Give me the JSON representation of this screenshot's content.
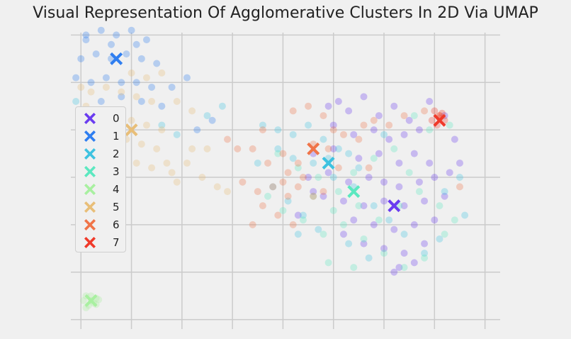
{
  "chart_data": {
    "type": "scatter",
    "title": "Visual Representation Of Agglomerative Clusters In 2D Via UMAP",
    "xlabel": "",
    "ylabel": "",
    "xlim": [
      -1.2,
      7.3
    ],
    "ylim": [
      -3.2,
      3.2
    ],
    "grid": true,
    "tick_labels_visible": false,
    "legend_placement": "center-left",
    "point_alpha": 0.3,
    "series": [
      {
        "name": "0",
        "color": "#6a3cf0",
        "points": [
          [
            3.9,
            1.5
          ],
          [
            4.1,
            1.6
          ],
          [
            4.3,
            1.4
          ],
          [
            4.6,
            1.7
          ],
          [
            4.9,
            1.3
          ],
          [
            5.2,
            1.5
          ],
          [
            5.5,
            1.2
          ],
          [
            4.0,
            1.1
          ],
          [
            4.4,
            0.9
          ],
          [
            4.8,
            1.0
          ],
          [
            5.1,
            0.8
          ],
          [
            5.4,
            0.9
          ],
          [
            5.7,
            1.0
          ],
          [
            3.6,
            0.5
          ],
          [
            4.0,
            0.6
          ],
          [
            4.5,
            0.4
          ],
          [
            4.9,
            0.5
          ],
          [
            5.3,
            0.3
          ],
          [
            5.6,
            0.5
          ],
          [
            5.9,
            0.3
          ],
          [
            3.5,
            0.0
          ],
          [
            3.9,
            0.1
          ],
          [
            4.3,
            -0.1
          ],
          [
            4.7,
            0.0
          ],
          [
            5.0,
            -0.1
          ],
          [
            5.3,
            -0.2
          ],
          [
            5.7,
            -0.1
          ],
          [
            6.0,
            0.0
          ],
          [
            6.3,
            0.1
          ],
          [
            3.8,
            -0.4
          ],
          [
            4.2,
            -0.5
          ],
          [
            4.6,
            -0.6
          ],
          [
            5.0,
            -0.5
          ],
          [
            5.4,
            -0.6
          ],
          [
            5.8,
            -0.5
          ],
          [
            6.2,
            -0.4
          ],
          [
            4.4,
            -0.9
          ],
          [
            4.8,
            -1.0
          ],
          [
            5.2,
            -1.1
          ],
          [
            5.6,
            -1.0
          ],
          [
            6.0,
            -0.9
          ],
          [
            4.6,
            -1.4
          ],
          [
            5.0,
            -1.5
          ],
          [
            5.4,
            -1.6
          ],
          [
            5.8,
            -1.4
          ],
          [
            5.3,
            -1.9
          ],
          [
            5.6,
            -1.8
          ],
          [
            5.2,
            -2.0
          ],
          [
            4.2,
            -1.2
          ],
          [
            3.6,
            -0.3
          ],
          [
            3.3,
            -0.8
          ],
          [
            6.5,
            0.3
          ],
          [
            6.2,
            1.3
          ],
          [
            5.9,
            1.6
          ],
          [
            6.4,
            0.8
          ]
        ]
      },
      {
        "name": "1",
        "color": "#2f7ef0",
        "points": [
          [
            -0.9,
            3.0
          ],
          [
            -0.6,
            3.1
          ],
          [
            -0.3,
            3.0
          ],
          [
            0.0,
            3.1
          ],
          [
            0.3,
            2.9
          ],
          [
            -1.0,
            2.5
          ],
          [
            -0.7,
            2.6
          ],
          [
            -0.4,
            2.5
          ],
          [
            -0.1,
            2.6
          ],
          [
            0.2,
            2.5
          ],
          [
            0.5,
            2.4
          ],
          [
            -1.1,
            2.1
          ],
          [
            -0.8,
            2.0
          ],
          [
            -0.5,
            2.1
          ],
          [
            -0.2,
            2.0
          ],
          [
            0.1,
            2.0
          ],
          [
            0.4,
            1.9
          ],
          [
            0.8,
            1.9
          ],
          [
            1.1,
            2.1
          ],
          [
            -0.6,
            1.6
          ],
          [
            -0.2,
            1.7
          ],
          [
            0.2,
            1.6
          ],
          [
            0.6,
            1.5
          ],
          [
            1.3,
            1.0
          ],
          [
            1.6,
            1.2
          ],
          [
            -0.9,
            2.9
          ],
          [
            -0.4,
            2.8
          ],
          [
            0.1,
            2.8
          ]
        ]
      },
      {
        "name": "2",
        "color": "#3ec2e0",
        "points": [
          [
            2.6,
            1.1
          ],
          [
            2.9,
            1.0
          ],
          [
            3.2,
            0.9
          ],
          [
            3.5,
            1.1
          ],
          [
            3.8,
            0.8
          ],
          [
            4.1,
            0.6
          ],
          [
            4.5,
            0.2
          ],
          [
            2.9,
            0.6
          ],
          [
            3.2,
            0.4
          ],
          [
            3.6,
            0.3
          ],
          [
            4.0,
            0.0
          ],
          [
            4.4,
            -0.2
          ],
          [
            4.8,
            -0.6
          ],
          [
            5.1,
            -0.9
          ],
          [
            5.4,
            -1.2
          ],
          [
            5.8,
            -1.6
          ],
          [
            6.2,
            -0.3
          ],
          [
            6.5,
            0.0
          ],
          [
            2.8,
            -0.2
          ],
          [
            3.1,
            -0.5
          ],
          [
            3.4,
            -0.8
          ],
          [
            3.7,
            -1.1
          ],
          [
            4.3,
            -1.4
          ],
          [
            4.7,
            -1.7
          ],
          [
            -1.1,
            1.6
          ],
          [
            -0.7,
            1.4
          ],
          [
            0.6,
            1.1
          ],
          [
            0.9,
            0.9
          ],
          [
            1.5,
            1.3
          ],
          [
            1.8,
            1.5
          ],
          [
            2.5,
            0.3
          ],
          [
            6.6,
            -0.8
          ],
          [
            6.1,
            -1.3
          ],
          [
            5.0,
            0.9
          ],
          [
            3.9,
            0.4
          ],
          [
            4.3,
            0.5
          ],
          [
            3.3,
            -1.2
          ]
        ]
      },
      {
        "name": "3",
        "color": "#5ce8c0",
        "points": [
          [
            2.9,
            0.5
          ],
          [
            3.3,
            0.2
          ],
          [
            3.7,
            0.0
          ],
          [
            4.1,
            -0.3
          ],
          [
            4.5,
            -0.6
          ],
          [
            4.9,
            -0.9
          ],
          [
            5.3,
            -0.6
          ],
          [
            5.7,
            -0.3
          ],
          [
            6.1,
            -0.6
          ],
          [
            6.4,
            -0.9
          ],
          [
            3.0,
            -0.7
          ],
          [
            3.4,
            -0.9
          ],
          [
            3.8,
            -1.2
          ],
          [
            4.2,
            -1.0
          ],
          [
            4.6,
            -1.3
          ],
          [
            5.0,
            -1.6
          ],
          [
            5.4,
            -1.9
          ],
          [
            5.8,
            -1.7
          ],
          [
            6.2,
            -1.2
          ],
          [
            3.6,
            -0.4
          ],
          [
            4.0,
            -0.7
          ],
          [
            4.4,
            0.1
          ],
          [
            4.8,
            0.4
          ],
          [
            5.2,
            0.6
          ],
          [
            5.6,
            1.3
          ],
          [
            5.9,
            1.0
          ],
          [
            3.9,
            -1.8
          ],
          [
            4.4,
            -1.9
          ],
          [
            2.7,
            -0.4
          ],
          [
            6.3,
            1.1
          ],
          [
            5.5,
            0.1
          ]
        ]
      },
      {
        "name": "4",
        "color": "#a8f0a0",
        "points": [
          [
            -0.9,
            -2.5
          ],
          [
            -0.8,
            -2.6
          ],
          [
            -0.7,
            -2.55
          ],
          [
            -0.85,
            -2.7
          ],
          [
            -0.75,
            -2.65
          ],
          [
            -0.95,
            -2.6
          ],
          [
            -0.8,
            -2.5
          ],
          [
            -0.65,
            -2.58
          ],
          [
            -0.9,
            -2.75
          ],
          [
            -0.7,
            -2.68
          ]
        ]
      },
      {
        "name": "5",
        "color": "#e8be78",
        "points": [
          [
            -0.8,
            1.8
          ],
          [
            -0.5,
            1.9
          ],
          [
            -0.2,
            1.8
          ],
          [
            0.1,
            1.7
          ],
          [
            0.4,
            1.6
          ],
          [
            -0.9,
            1.5
          ],
          [
            -0.6,
            1.4
          ],
          [
            -0.3,
            1.3
          ],
          [
            0.0,
            1.2
          ],
          [
            0.3,
            1.1
          ],
          [
            0.6,
            1.0
          ],
          [
            -0.7,
            1.1
          ],
          [
            -0.4,
            0.9
          ],
          [
            -0.1,
            0.8
          ],
          [
            0.2,
            0.7
          ],
          [
            0.5,
            0.6
          ],
          [
            -0.2,
            0.4
          ],
          [
            0.1,
            0.3
          ],
          [
            0.4,
            0.2
          ],
          [
            0.8,
            0.1
          ],
          [
            1.1,
            0.3
          ],
          [
            1.4,
            0.0
          ],
          [
            1.7,
            -0.2
          ],
          [
            1.9,
            -0.3
          ],
          [
            0.3,
            2.1
          ],
          [
            0.6,
            2.2
          ],
          [
            0.9,
            1.6
          ],
          [
            1.2,
            1.4
          ],
          [
            -1.0,
            1.9
          ],
          [
            0.0,
            2.2
          ],
          [
            0.7,
            0.3
          ],
          [
            0.9,
            -0.1
          ],
          [
            1.5,
            0.6
          ],
          [
            1.2,
            0.6
          ]
        ]
      },
      {
        "name": "6",
        "color": "#f07448",
        "points": [
          [
            1.9,
            0.8
          ],
          [
            2.4,
            0.6
          ],
          [
            2.7,
            0.3
          ],
          [
            3.0,
            0.5
          ],
          [
            3.3,
            0.3
          ],
          [
            3.6,
            0.7
          ],
          [
            3.9,
            0.6
          ],
          [
            4.2,
            0.9
          ],
          [
            4.5,
            0.8
          ],
          [
            4.8,
            1.2
          ],
          [
            5.1,
            1.1
          ],
          [
            5.4,
            1.3
          ],
          [
            5.8,
            1.4
          ],
          [
            6.1,
            1.3
          ],
          [
            2.2,
            -0.1
          ],
          [
            2.5,
            -0.3
          ],
          [
            2.8,
            -0.2
          ],
          [
            3.1,
            -0.4
          ],
          [
            3.4,
            0.0
          ],
          [
            3.0,
            -0.1
          ],
          [
            3.3,
            -0.2
          ],
          [
            3.6,
            -0.4
          ],
          [
            2.6,
            -0.6
          ],
          [
            2.9,
            -0.8
          ],
          [
            3.2,
            -1.0
          ],
          [
            2.4,
            -1.0
          ],
          [
            3.8,
            -0.3
          ],
          [
            4.1,
            0.2
          ],
          [
            2.1,
            0.6
          ],
          [
            4.6,
            1.1
          ],
          [
            3.2,
            1.4
          ],
          [
            3.5,
            1.5
          ],
          [
            3.8,
            1.3
          ],
          [
            4.0,
            1.0
          ],
          [
            3.1,
            0.1
          ],
          [
            2.6,
            1.0
          ],
          [
            4.7,
            0.2
          ],
          [
            6.5,
            -0.2
          ]
        ]
      },
      {
        "name": "7",
        "color": "#f03a2a",
        "points": [
          [
            6.0,
            1.4
          ],
          [
            6.1,
            1.3
          ],
          [
            6.2,
            1.2
          ],
          [
            6.05,
            1.1
          ],
          [
            6.15,
            1.35
          ],
          [
            5.95,
            1.2
          ],
          [
            6.1,
            1.25
          ]
        ]
      }
    ],
    "centroids": [
      {
        "name": "0",
        "x": 5.2,
        "y": -0.6
      },
      {
        "name": "1",
        "x": -0.3,
        "y": 2.5
      },
      {
        "name": "2",
        "x": 3.9,
        "y": 0.3
      },
      {
        "name": "3",
        "x": 4.4,
        "y": -0.3
      },
      {
        "name": "4",
        "x": -0.8,
        "y": -2.6
      },
      {
        "name": "5",
        "x": 0.0,
        "y": 1.0
      },
      {
        "name": "6",
        "x": 3.6,
        "y": 0.6
      },
      {
        "name": "7",
        "x": 6.1,
        "y": 1.2
      }
    ]
  }
}
